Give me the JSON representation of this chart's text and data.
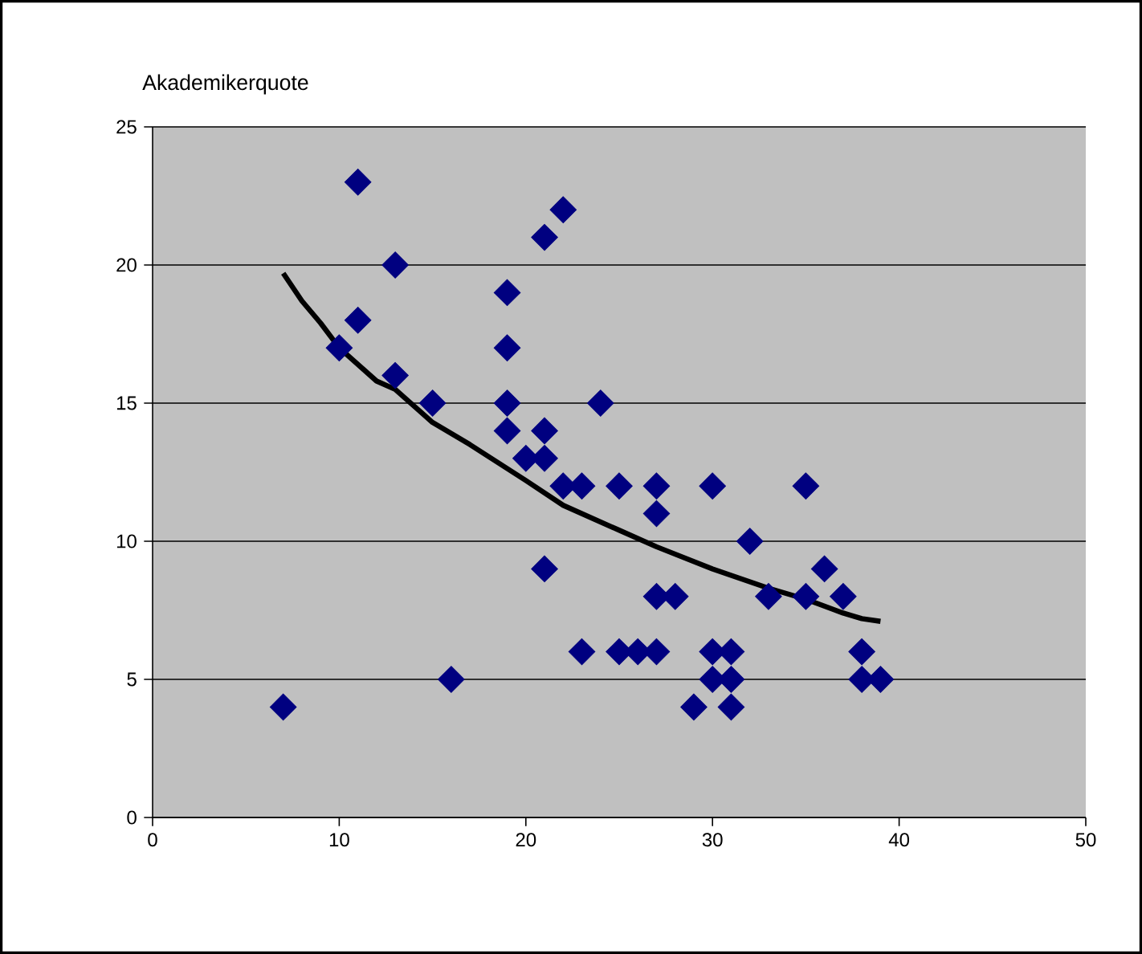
{
  "chart_data": {
    "type": "scatter",
    "ylabel": "Akademikerquote",
    "xlim": [
      0,
      50
    ],
    "ylim": [
      0,
      25
    ],
    "xticks": [
      0,
      10,
      20,
      30,
      40,
      50
    ],
    "yticks": [
      0,
      5,
      10,
      15,
      20,
      25
    ],
    "grid": "y",
    "series": [
      {
        "marker": "diamond",
        "color": "#000080",
        "x": [
          7,
          10,
          11,
          11,
          13,
          13,
          15,
          16,
          19,
          19,
          19,
          19,
          20,
          21,
          21,
          21,
          21,
          22,
          22,
          23,
          23,
          24,
          25,
          25,
          26,
          27,
          27,
          27,
          27,
          28,
          29,
          30,
          30,
          30,
          31,
          31,
          31,
          32,
          33,
          35,
          35,
          36,
          37,
          38,
          38,
          39
        ],
        "values": [
          4,
          17,
          23,
          18,
          20,
          16,
          15,
          5,
          19,
          17,
          15,
          14,
          13,
          21,
          14,
          13,
          9,
          22,
          12,
          12,
          6,
          15,
          12,
          6,
          6,
          12,
          11,
          8,
          6,
          8,
          4,
          12,
          6,
          5,
          6,
          5,
          4,
          10,
          8,
          12,
          8,
          9,
          8,
          6,
          5,
          5
        ]
      },
      {
        "type": "line",
        "marker": "none",
        "line_style": "solid",
        "color": "#000000",
        "x": [
          7,
          8,
          9,
          10,
          12,
          13,
          15,
          17,
          20,
          22,
          25,
          27,
          30,
          33,
          35,
          37,
          38,
          39
        ],
        "values": [
          19.7,
          18.7,
          17.9,
          17,
          15.8,
          15.5,
          14.3,
          13.5,
          12.2,
          11.3,
          10.4,
          9.8,
          9.0,
          8.3,
          7.9,
          7.4,
          7.2,
          7.1
        ]
      }
    ]
  }
}
